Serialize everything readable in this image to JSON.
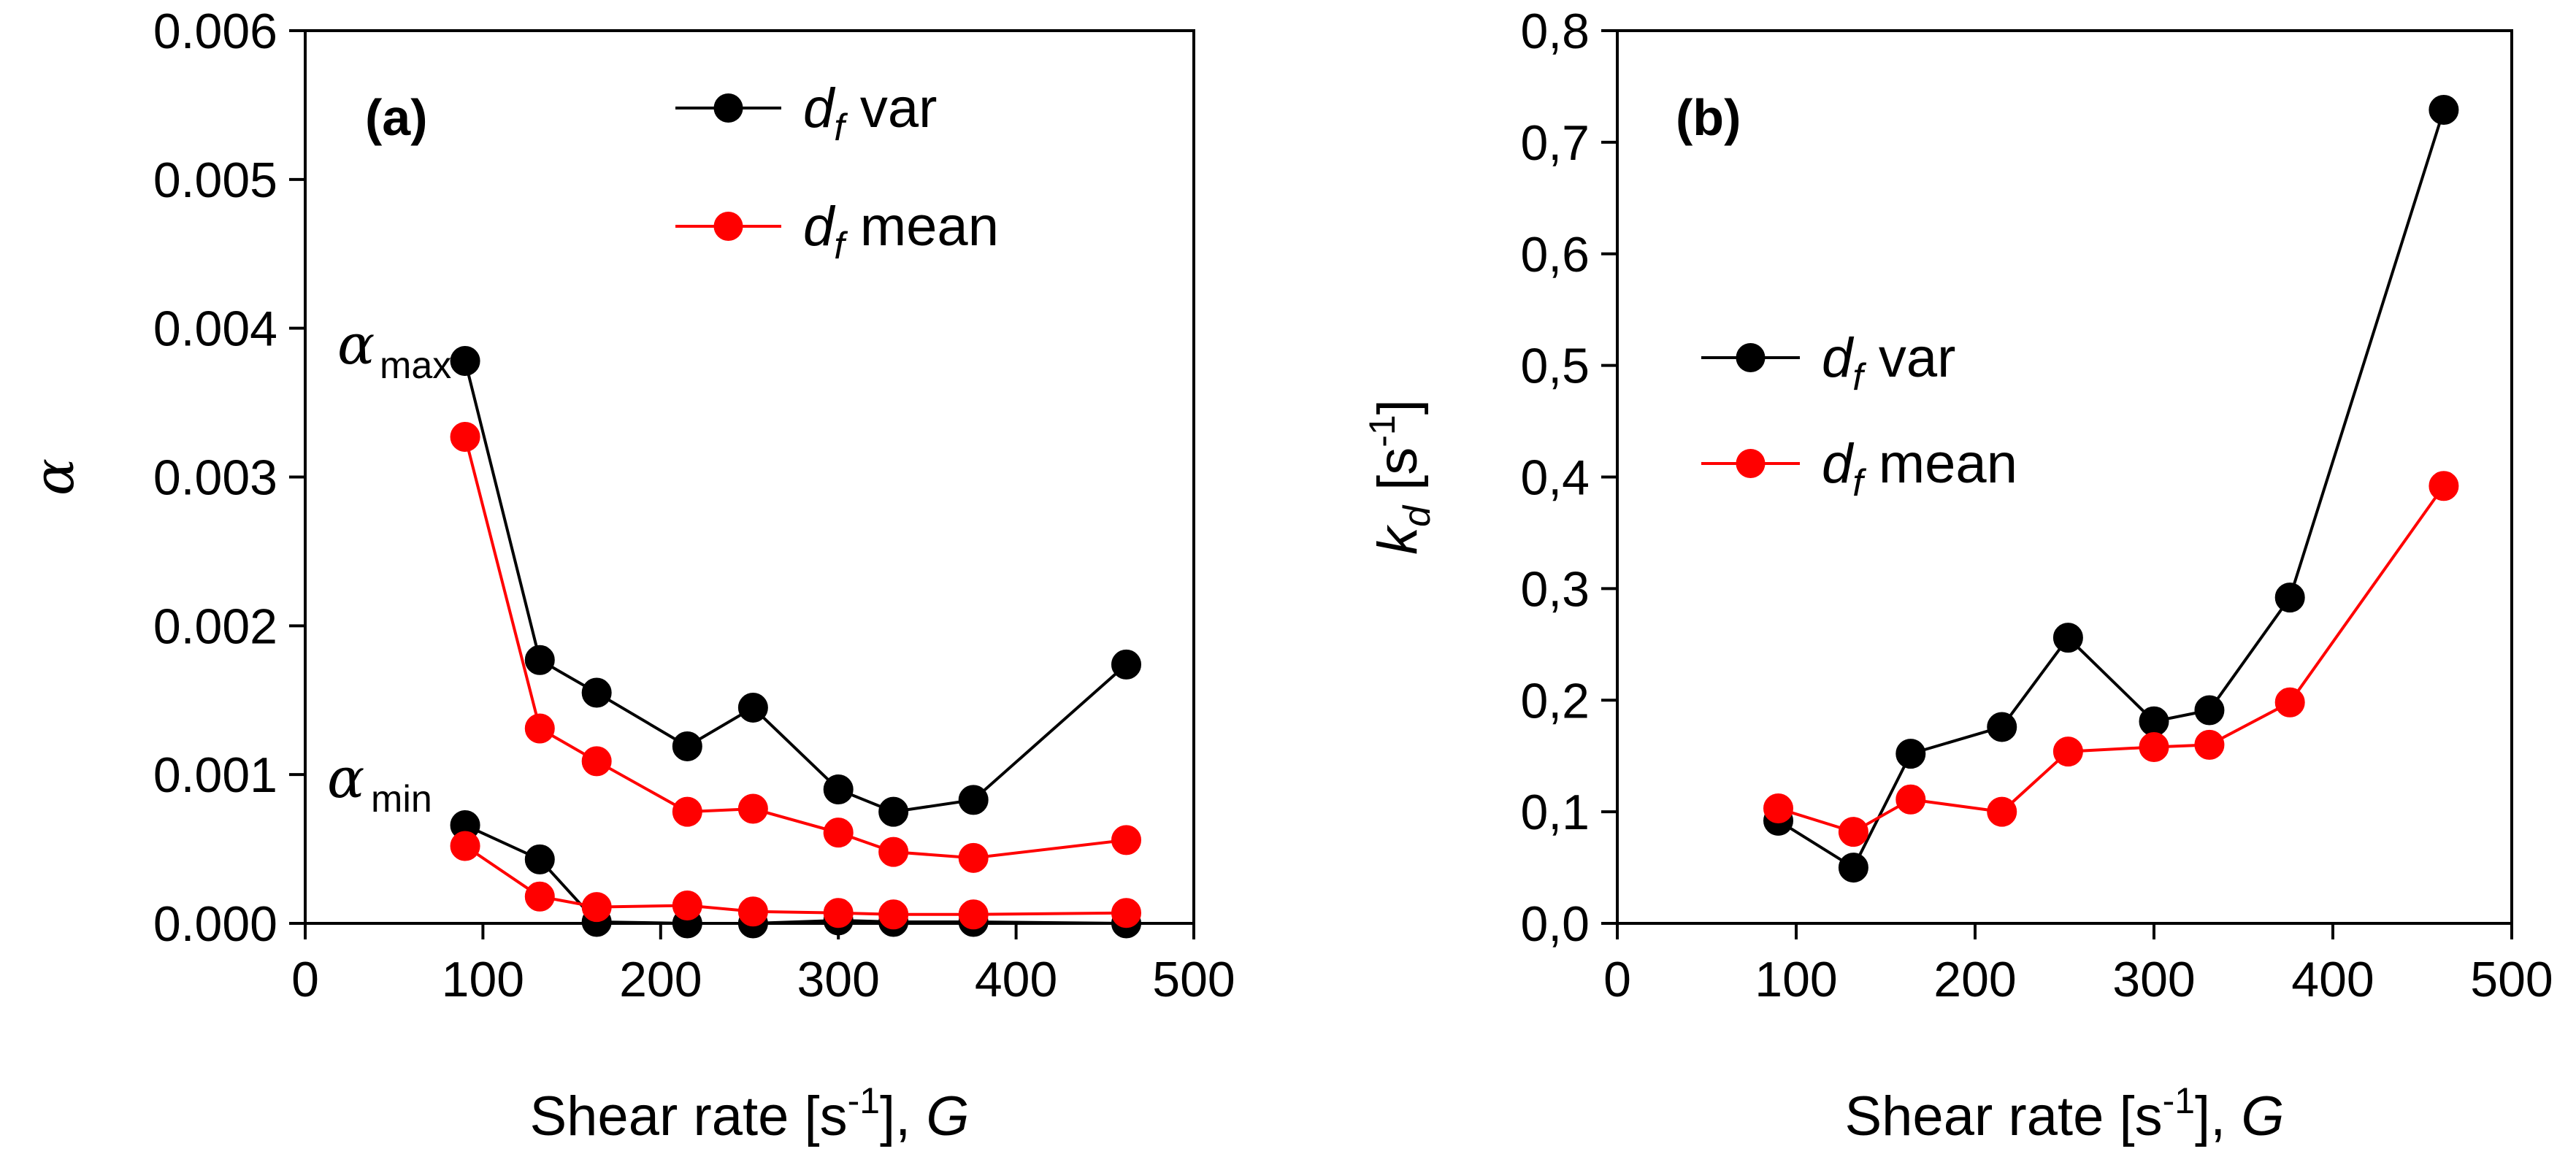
{
  "chart_data": [
    {
      "type": "line",
      "panel_label": "(a)",
      "xlabel_main": "Shear rate [s",
      "xlabel_sup": "-1",
      "xlabel_tail": "], ",
      "xlabel_var": "G",
      "ylabel": "α",
      "xlim": [
        0,
        500
      ],
      "ylim": [
        0,
        0.006
      ],
      "xticks": [
        0,
        100,
        200,
        300,
        400,
        500
      ],
      "yticks": [
        0.0,
        0.001,
        0.002,
        0.003,
        0.004,
        0.005,
        0.006
      ],
      "xtick_labels": [
        "0",
        "100",
        "200",
        "300",
        "400",
        "500"
      ],
      "ytick_labels": [
        "0.000",
        "0.001",
        "0.002",
        "0.003",
        "0.004",
        "0.005",
        "0.006"
      ],
      "legend": [
        {
          "base": "d",
          "sub": "f",
          "text": " var",
          "color": "#000000"
        },
        {
          "base": "d",
          "sub": "f",
          "text": " mean",
          "color": "#ff0000"
        }
      ],
      "annotations": [
        {
          "symbol": "α",
          "sub": "max"
        },
        {
          "symbol": "α",
          "sub": "min"
        }
      ],
      "series": [
        {
          "name": "df var (alpha max)",
          "color": "#000000",
          "x": [
            90,
            132,
            164,
            215,
            252,
            300,
            331,
            376,
            462
          ],
          "y": [
            0.00378,
            0.00177,
            0.00155,
            0.00119,
            0.00145,
            0.0009,
            0.00075,
            0.00083,
            0.00174
          ]
        },
        {
          "name": "df mean (alpha max)",
          "color": "#ff0000",
          "x": [
            90,
            132,
            164,
            215,
            252,
            300,
            331,
            376,
            462
          ],
          "y": [
            0.00327,
            0.00131,
            0.00109,
            0.00075,
            0.00077,
            0.00061,
            0.00048,
            0.00044,
            0.00056
          ]
        },
        {
          "name": "df var (alpha min)",
          "color": "#000000",
          "x": [
            90,
            132,
            164,
            215,
            252,
            300,
            331,
            376,
            462
          ],
          "y": [
            0.00066,
            0.00043,
            1e-05,
            0.0,
            0.0,
            2e-05,
            1e-05,
            1e-05,
            0.0
          ]
        },
        {
          "name": "df mean (alpha min)",
          "color": "#ff0000",
          "x": [
            90,
            132,
            164,
            215,
            252,
            300,
            331,
            376,
            462
          ],
          "y": [
            0.00052,
            0.00018,
            0.00011,
            0.00012,
            8e-05,
            7e-05,
            6e-05,
            6e-05,
            7e-05
          ]
        }
      ]
    },
    {
      "type": "line",
      "panel_label": "(b)",
      "xlabel_main": "Shear rate [s",
      "xlabel_sup": "-1",
      "xlabel_tail": "], ",
      "xlabel_var": "G",
      "ylabel_base": "k",
      "ylabel_sub": "d",
      "ylabel_main": " [s",
      "ylabel_sup": "-1",
      "ylabel_tail": "]",
      "xlim": [
        0,
        500
      ],
      "ylim": [
        0,
        0.8
      ],
      "xticks": [
        0,
        100,
        200,
        300,
        400,
        500
      ],
      "yticks": [
        0.0,
        0.1,
        0.2,
        0.3,
        0.4,
        0.5,
        0.6,
        0.7,
        0.8
      ],
      "xtick_labels": [
        "0",
        "100",
        "200",
        "300",
        "400",
        "500"
      ],
      "ytick_labels": [
        "0,0",
        "0,1",
        "0,2",
        "0,3",
        "0,4",
        "0,5",
        "0,6",
        "0,7",
        "0,8"
      ],
      "legend": [
        {
          "base": "d",
          "sub": "f",
          "text": " var",
          "color": "#000000"
        },
        {
          "base": "d",
          "sub": "f",
          "text": " mean",
          "color": "#ff0000"
        }
      ],
      "series": [
        {
          "name": "df var",
          "color": "#000000",
          "x": [
            90,
            132,
            164,
            215,
            252,
            300,
            331,
            376,
            462
          ],
          "y": [
            0.092,
            0.05,
            0.152,
            0.176,
            0.256,
            0.181,
            0.191,
            0.292,
            0.729
          ]
        },
        {
          "name": "df mean",
          "color": "#ff0000",
          "x": [
            90,
            132,
            164,
            215,
            252,
            300,
            331,
            376,
            462
          ],
          "y": [
            0.103,
            0.082,
            0.111,
            0.1,
            0.154,
            0.158,
            0.16,
            0.198,
            0.392
          ]
        }
      ]
    }
  ]
}
